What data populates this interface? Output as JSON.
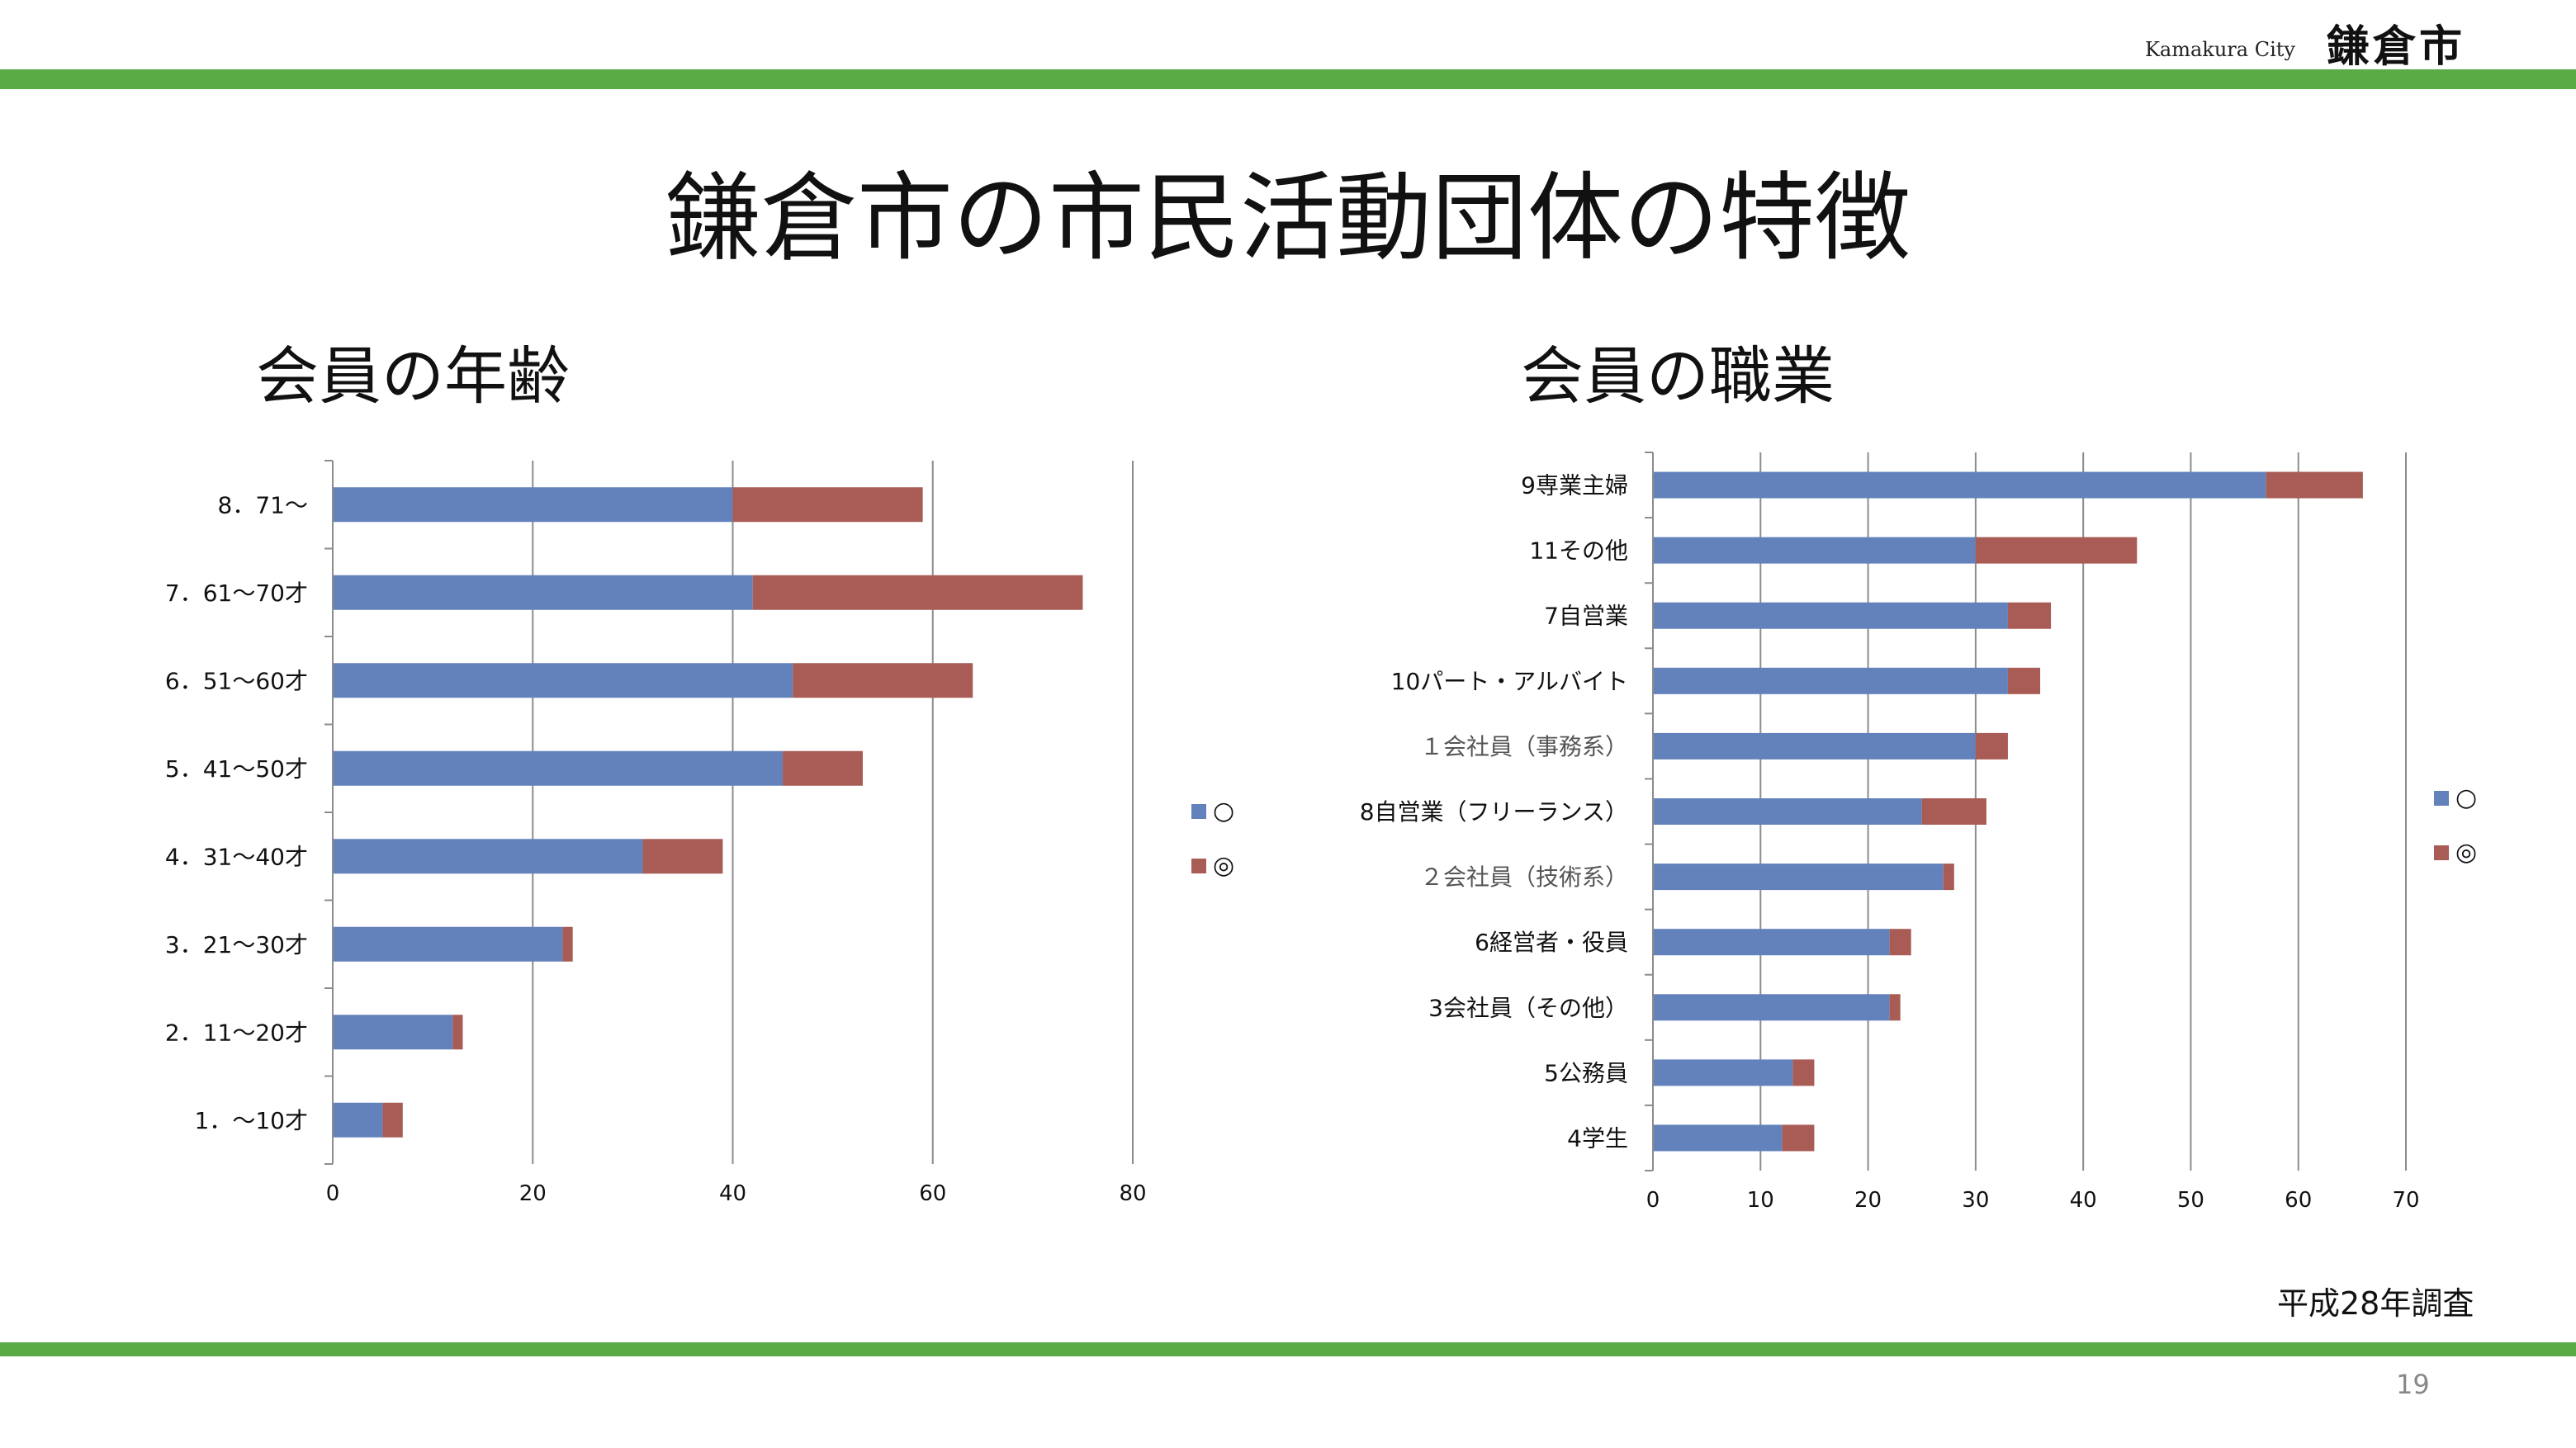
{
  "header": {
    "logo_en": "Kamakura City",
    "logo_jp": "鎌倉市",
    "band_color": "#5aab46"
  },
  "page": {
    "title": "鎌倉市の市民活動団体の特徴",
    "survey_note": "平成28年調査",
    "page_number": "19"
  },
  "colors": {
    "series_circle": "#6382bb",
    "series_double": "#a85c55",
    "grid": "#8c8c8c"
  },
  "chart_data": [
    {
      "type": "bar",
      "orientation": "horizontal",
      "stacked": true,
      "title": "会員の年齢",
      "categories": [
        "8．71～",
        "7．61～70才",
        "6．51～60才",
        "5．41～50才",
        "4．31～40才",
        "3．21～30才",
        "2．11～20才",
        "1．～10才"
      ],
      "series": [
        {
          "name": "○",
          "values": [
            40,
            42,
            46,
            45,
            31,
            23,
            12,
            5
          ]
        },
        {
          "name": "◎",
          "values": [
            19,
            33,
            18,
            8,
            8,
            1,
            1,
            2
          ]
        }
      ],
      "xlim": [
        0,
        80
      ],
      "xticks": [
        "0",
        "20",
        "40",
        "60",
        "80"
      ],
      "legend": "right",
      "grid": true
    },
    {
      "type": "bar",
      "orientation": "horizontal",
      "stacked": true,
      "title": "会員の職業",
      "categories": [
        "9専業主婦",
        "11その他",
        "7自営業",
        "10パート・アルバイト",
        "１会社員（事務系）",
        "8自営業（フリーランス）",
        "２会社員（技術系）",
        "6経営者・役員",
        "3会社員（その他）",
        "5公務員",
        "4学生"
      ],
      "series": [
        {
          "name": "○",
          "values": [
            57,
            30,
            33,
            33,
            30,
            25,
            27,
            22,
            22,
            13,
            12
          ]
        },
        {
          "name": "◎",
          "values": [
            9,
            15,
            4,
            3,
            3,
            6,
            1,
            2,
            1,
            2,
            3
          ]
        }
      ],
      "xlim": [
        0,
        70
      ],
      "xticks": [
        "0",
        "10",
        "20",
        "30",
        "40",
        "50",
        "60",
        "70"
      ],
      "legend": "right",
      "grid": true
    }
  ]
}
